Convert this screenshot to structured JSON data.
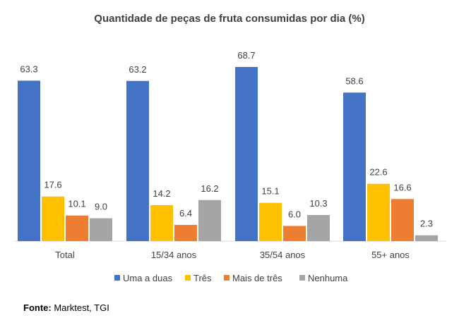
{
  "chart_data": {
    "type": "bar",
    "title": "Quantidade de peças de fruta consumidas por dia (%)",
    "categories": [
      "Total",
      "15/34 anos",
      "35/54 anos",
      "55+ anos"
    ],
    "series": [
      {
        "name": "Uma a duas",
        "color": "#4472C4",
        "values": [
          63.3,
          63.2,
          68.7,
          58.6
        ]
      },
      {
        "name": "Três",
        "color": "#FFC000",
        "values": [
          17.6,
          14.2,
          15.1,
          22.6
        ]
      },
      {
        "name": "Mais de três",
        "color": "#ED7D31",
        "values": [
          10.1,
          6.4,
          6.0,
          16.6
        ]
      },
      {
        "name": "Nenhuma",
        "color": "#A5A5A5",
        "values": [
          9.0,
          16.2,
          10.3,
          2.3
        ]
      }
    ],
    "value_labels": [
      [
        "63.3",
        "63.2",
        "68.7",
        "58.6"
      ],
      [
        "17.6",
        "14.2",
        "15.1",
        "22.6"
      ],
      [
        "10.1",
        "6.4",
        "6.0",
        "16.6"
      ],
      [
        "9.0",
        "16.2",
        "10.3",
        "2.3"
      ]
    ],
    "xlabel": "",
    "ylabel": "",
    "ylim": [
      0,
      68.7
    ],
    "grid": false,
    "legend": "bottom"
  },
  "source": {
    "label": "Fonte:",
    "text": "Marktest, TGI"
  }
}
